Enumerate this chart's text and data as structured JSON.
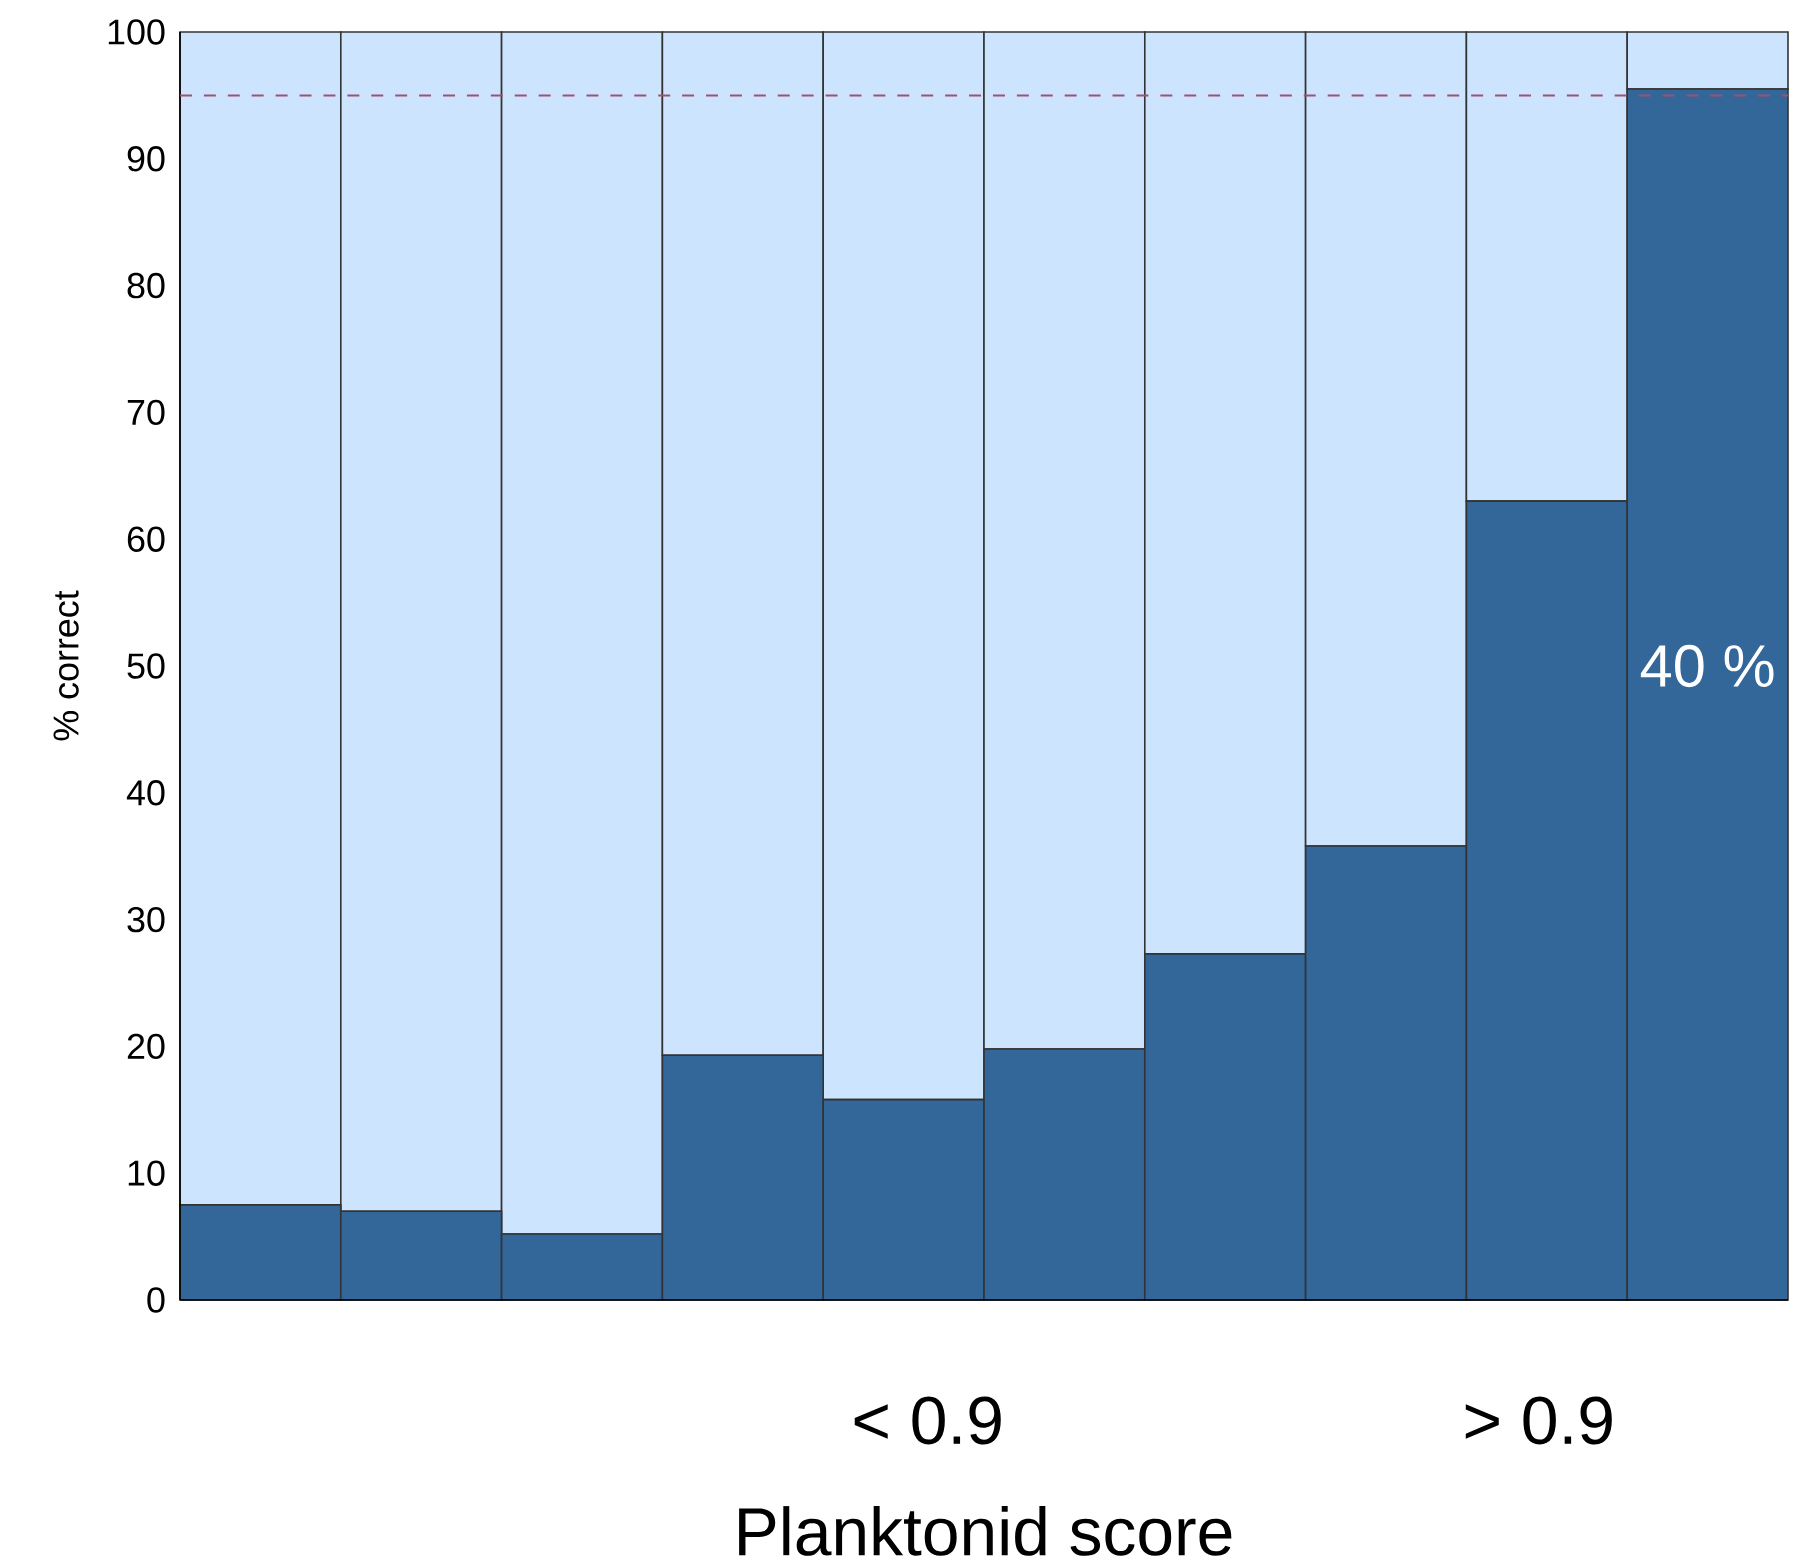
{
  "chart_data": {
    "type": "bar",
    "stacked": true,
    "categories": [
      null,
      null,
      null,
      null,
      null,
      null,
      null,
      null,
      null,
      null
    ],
    "series": [
      {
        "color": "#336699",
        "values": [
          7.5,
          7,
          5.2,
          19.3,
          15.8,
          19.8,
          27.3,
          35.8,
          63,
          95.5
        ]
      },
      {
        "color": "#cce4fd",
        "values": [
          92.5,
          93,
          94.8,
          80.7,
          84.2,
          80.2,
          72.7,
          64.2,
          37,
          4.5
        ]
      }
    ],
    "ylim": [
      0,
      100
    ],
    "yticks": [
      0,
      10,
      20,
      30,
      40,
      50,
      60,
      70,
      80,
      90,
      100
    ],
    "ylabel": "% correct",
    "xlabel": "Planktonid score",
    "annotations": [
      "40 %",
      "< 0.9",
      "> 0.9"
    ],
    "ref_lines": [
      {
        "axis": "y",
        "value": 95,
        "color": "#a05070",
        "line_style": "dashed"
      }
    ],
    "grid": false
  }
}
